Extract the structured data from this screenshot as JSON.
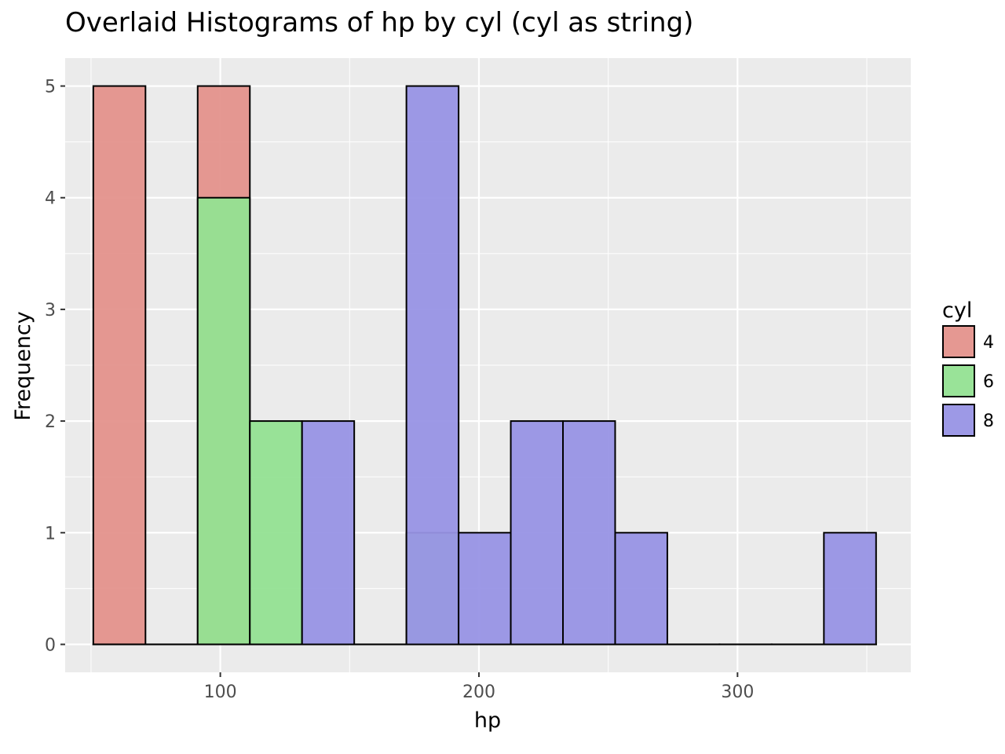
{
  "chart_data": {
    "type": "bar",
    "subtype": "overlaid histogram",
    "title": "Overlaid Histograms of hp by cyl (cyl as string)",
    "xlabel": "hp",
    "ylabel": "Frequency",
    "xlim": [
      40,
      367
    ],
    "ylim": [
      -0.25,
      5.25
    ],
    "xticks": [
      100,
      200,
      300
    ],
    "yticks": [
      0,
      1,
      2,
      3,
      4,
      5
    ],
    "grid": true,
    "bin_edges": [
      50.88,
      71.06,
      91.24,
      111.42,
      131.6,
      151.78,
      171.96,
      192.14,
      212.32,
      232.5,
      252.68,
      272.86,
      293.04,
      313.22,
      333.4,
      353.58
    ],
    "legend": {
      "title": "cyl",
      "position": "right"
    },
    "series": [
      {
        "name": "4",
        "color": "#e4928c",
        "counts": [
          5,
          0,
          5,
          0,
          0,
          0,
          0,
          0,
          0,
          0,
          0,
          0,
          0,
          0,
          0
        ]
      },
      {
        "name": "6",
        "color": "#93e292",
        "counts": [
          0,
          0,
          4,
          2,
          0,
          0,
          1,
          0,
          0,
          0,
          0,
          0,
          0,
          0,
          0
        ]
      },
      {
        "name": "8",
        "color": "#9894e5",
        "counts": [
          0,
          0,
          0,
          0,
          2,
          0,
          5,
          1,
          2,
          2,
          1,
          0,
          0,
          0,
          1
        ]
      }
    ]
  }
}
